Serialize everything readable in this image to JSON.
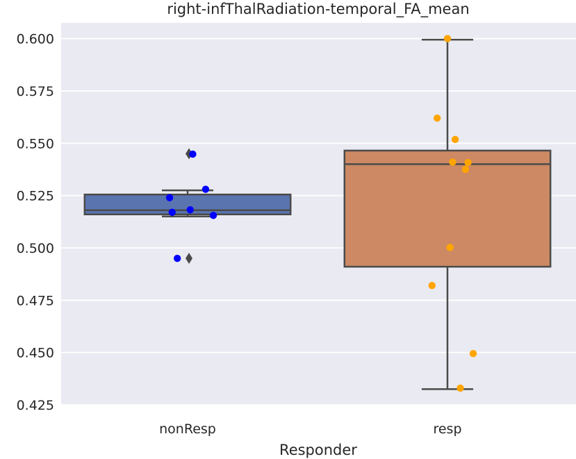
{
  "chart_data": {
    "type": "box",
    "title": "right-infThalRadiation-temporal_FA_mean",
    "xlabel": "Responder",
    "ylabel": "",
    "ylim": [
      0.425,
      0.6075
    ],
    "yticks": [
      0.425,
      0.45,
      0.475,
      0.5,
      0.525,
      0.55,
      0.575,
      0.6
    ],
    "ytick_labels": [
      "0.425",
      "0.450",
      "0.475",
      "0.500",
      "0.525",
      "0.550",
      "0.575",
      "0.600"
    ],
    "categories": [
      "nonResp",
      "resp"
    ],
    "grid": true,
    "boxes": [
      {
        "category": "nonResp",
        "color": "#5a74b0",
        "whisker_low": 0.515,
        "q1": 0.516,
        "median": 0.518,
        "q3": 0.5255,
        "whisker_high": 0.5275,
        "fliers": [
          0.545,
          0.495
        ]
      },
      {
        "category": "resp",
        "color": "#cc8963",
        "whisker_low": 0.4325,
        "q1": 0.491,
        "median": 0.54,
        "q3": 0.5465,
        "whisker_high": 0.5995,
        "fliers": []
      }
    ],
    "points": [
      {
        "category": "nonResp",
        "color": "#0000ff",
        "values": [
          0.5448,
          0.528,
          0.524,
          0.5182,
          0.517,
          0.5155,
          0.495
        ],
        "jitter": [
          0.02,
          0.07,
          -0.07,
          0.01,
          -0.06,
          0.1,
          -0.04
        ]
      },
      {
        "category": "resp",
        "color": "#ffa500",
        "values": [
          0.6,
          0.562,
          0.5518,
          0.541,
          0.5408,
          0.5375,
          0.5002,
          0.482,
          0.4495,
          0.433
        ],
        "jitter": [
          0.0,
          -0.04,
          0.03,
          0.02,
          0.08,
          0.07,
          0.01,
          -0.06,
          0.1,
          0.05
        ]
      }
    ]
  }
}
